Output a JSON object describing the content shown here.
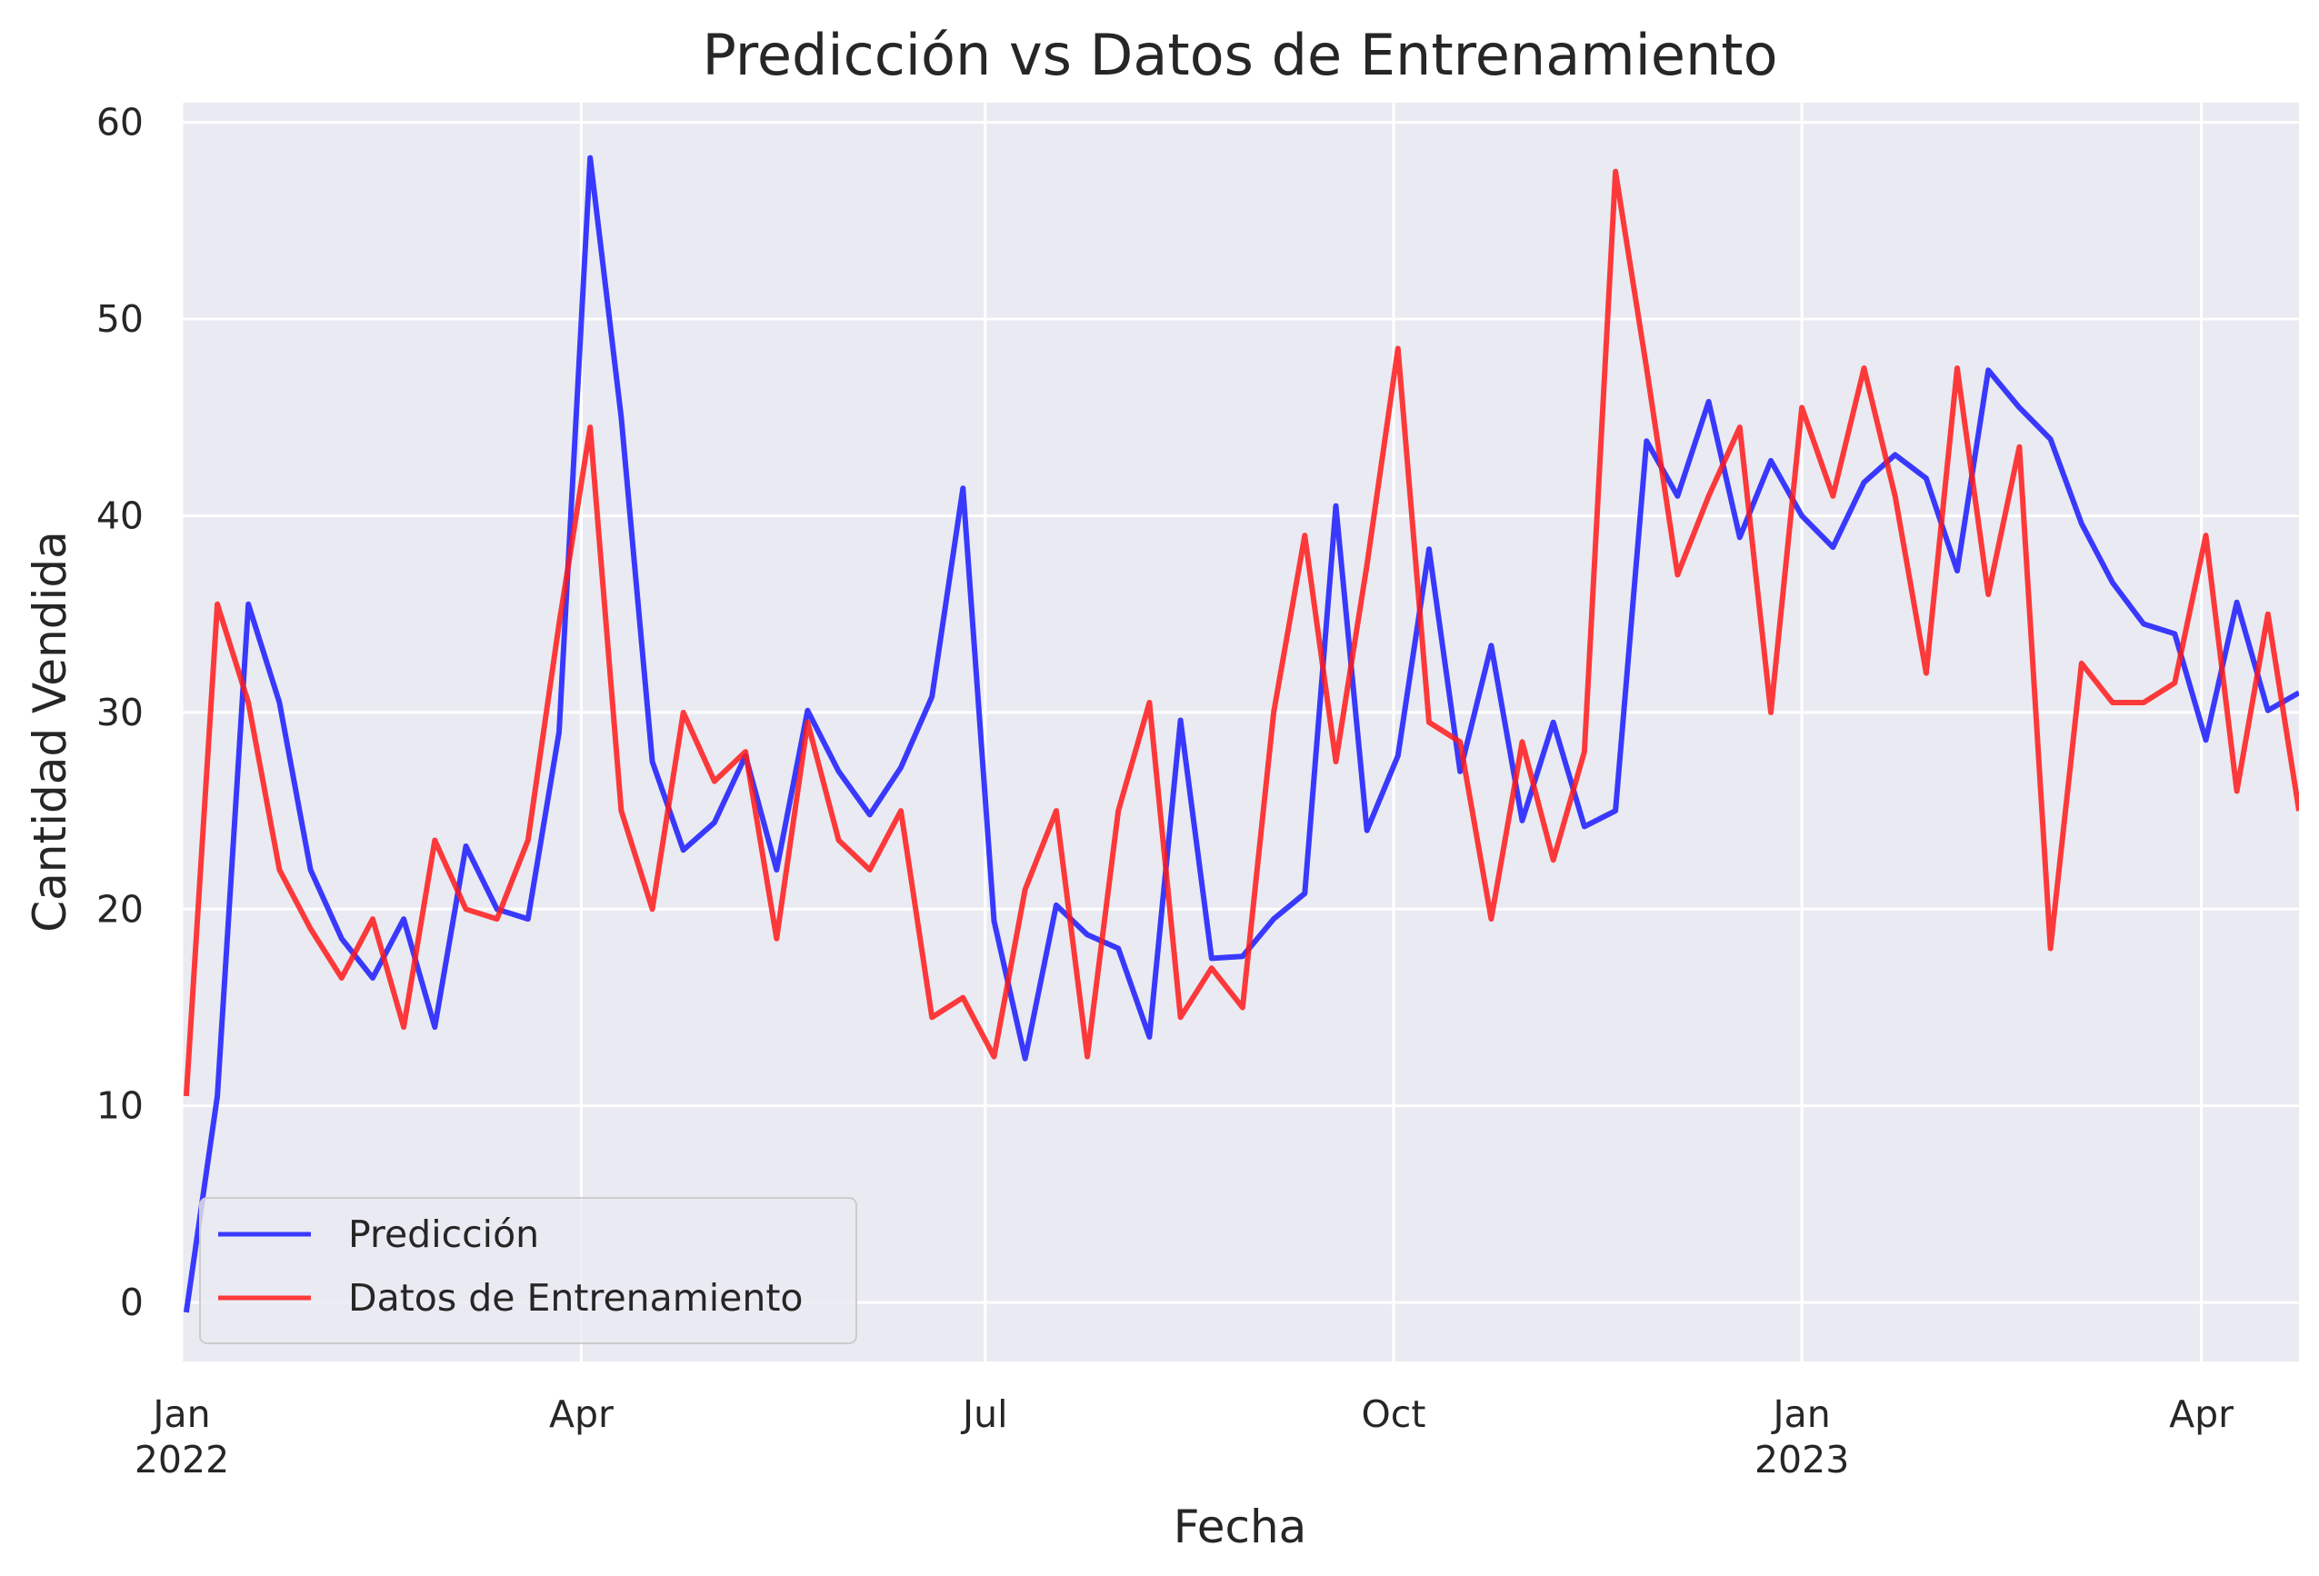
{
  "chart_data": {
    "type": "line",
    "title": "Predicción vs Datos de Entrenamiento",
    "xlabel": "Fecha",
    "ylabel": "Cantidad Vendida",
    "x_axis_type": "date",
    "xlim": [
      "2022-01-01",
      "2023-04-23"
    ],
    "ylim": [
      -3,
      61
    ],
    "yticks": [
      0,
      10,
      20,
      30,
      40,
      50,
      60
    ],
    "xticks": [
      {
        "date": "2022-01-01",
        "label": "Jan",
        "sublabel": "2022"
      },
      {
        "date": "2022-04-01",
        "label": "Apr",
        "sublabel": ""
      },
      {
        "date": "2022-07-01",
        "label": "Jul",
        "sublabel": ""
      },
      {
        "date": "2022-10-01",
        "label": "Oct",
        "sublabel": ""
      },
      {
        "date": "2023-01-01",
        "label": "Jan",
        "sublabel": "2023"
      },
      {
        "date": "2023-04-01",
        "label": "Apr",
        "sublabel": ""
      }
    ],
    "grid": true,
    "legend_position": "lower-left",
    "background": "#eaeaf2",
    "x": [
      "2022-01-02",
      "2022-01-09",
      "2022-01-16",
      "2022-01-23",
      "2022-01-30",
      "2022-02-06",
      "2022-02-13",
      "2022-02-20",
      "2022-02-27",
      "2022-03-06",
      "2022-03-13",
      "2022-03-20",
      "2022-03-27",
      "2022-04-03",
      "2022-04-10",
      "2022-04-17",
      "2022-04-24",
      "2022-05-01",
      "2022-05-08",
      "2022-05-15",
      "2022-05-22",
      "2022-05-29",
      "2022-06-05",
      "2022-06-12",
      "2022-06-19",
      "2022-06-26",
      "2022-07-03",
      "2022-07-10",
      "2022-07-17",
      "2022-07-24",
      "2022-07-31",
      "2022-08-07",
      "2022-08-14",
      "2022-08-21",
      "2022-08-28",
      "2022-09-04",
      "2022-09-11",
      "2022-09-18",
      "2022-09-25",
      "2022-10-02",
      "2022-10-09",
      "2022-10-16",
      "2022-10-23",
      "2022-10-30",
      "2022-11-06",
      "2022-11-13",
      "2022-11-20",
      "2022-11-27",
      "2022-12-04",
      "2022-12-11",
      "2022-12-18",
      "2022-12-25",
      "2023-01-01",
      "2023-01-08",
      "2023-01-15",
      "2023-01-22",
      "2023-01-29",
      "2023-02-05",
      "2023-02-12",
      "2023-02-19",
      "2023-02-26",
      "2023-03-05",
      "2023-03-12",
      "2023-03-19",
      "2023-03-26",
      "2023-04-02",
      "2023-04-09",
      "2023-04-16",
      "2023-04-23"
    ],
    "series": [
      {
        "name": "Predicción",
        "color": "#1a1aff",
        "values": [
          -0.5,
          10.5,
          35.5,
          30.5,
          22,
          18.5,
          16.5,
          19.5,
          14,
          23.2,
          20,
          19.5,
          29,
          58.2,
          45,
          27.5,
          23,
          24.4,
          27.8,
          22,
          30.1,
          27,
          24.8,
          27.2,
          30.8,
          41.4,
          19.4,
          12.4,
          20.2,
          18.7,
          18,
          13.5,
          29.6,
          17.5,
          17.6,
          19.5,
          20.8,
          40.5,
          24,
          27.8,
          38.3,
          27,
          33.4,
          24.5,
          29.5,
          24.2,
          25,
          43.8,
          41,
          45.8,
          38.9,
          42.8,
          40,
          38.4,
          41.7,
          43.1,
          41.9,
          37.2,
          47.4,
          45.5,
          43.9,
          39.6,
          36.6,
          34.5,
          34,
          28.6,
          35.6,
          30.1,
          31
        ]
      },
      {
        "name": "Datos de Entrenamiento",
        "color": "#ff1a1a",
        "values": [
          10.5,
          35.5,
          30.5,
          22,
          19,
          16.5,
          19.5,
          14,
          23.5,
          20,
          19.5,
          23.5,
          34.5,
          44.5,
          25,
          20,
          30,
          26.5,
          28,
          18.5,
          29.5,
          23.5,
          22,
          25,
          14.5,
          15.5,
          12.5,
          21,
          25,
          12.5,
          25,
          30.5,
          14.5,
          17,
          15,
          30,
          39,
          27.5,
          37.5,
          48.5,
          29.5,
          28.5,
          19.5,
          28.5,
          22.5,
          28,
          57.5,
          47.5,
          37,
          41,
          44.5,
          30,
          45.5,
          41,
          47.5,
          41,
          32,
          47.5,
          36,
          43.5,
          18,
          32.5,
          30.5,
          30.5,
          31.5,
          39,
          26,
          35,
          25
        ]
      }
    ]
  }
}
